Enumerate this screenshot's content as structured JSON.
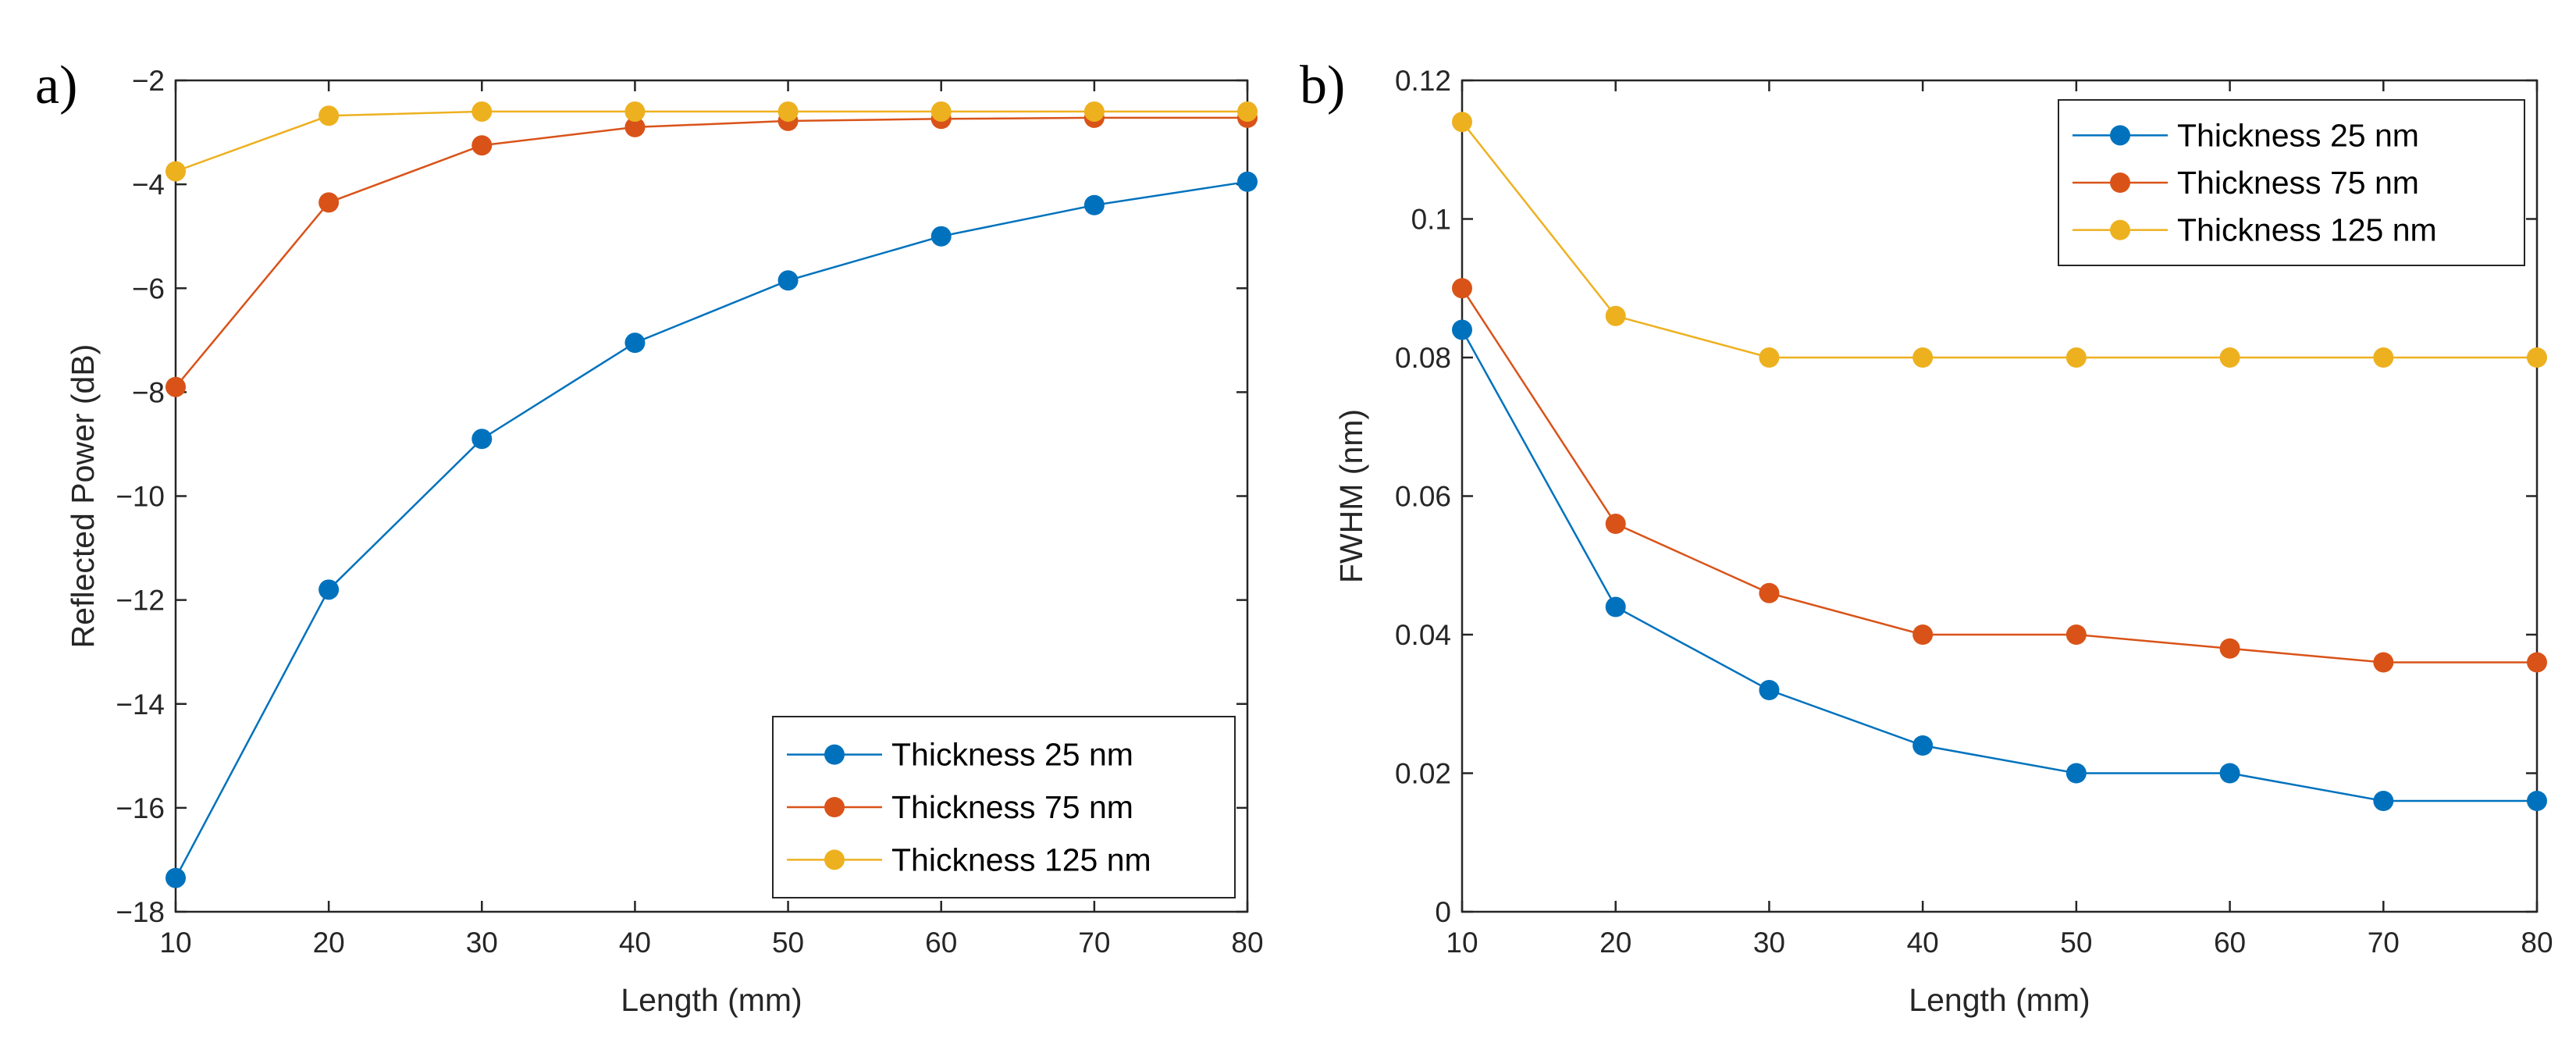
{
  "chart_data": [
    {
      "type": "line",
      "panel_label": "a)",
      "title": "",
      "xlabel": "Length (mm)",
      "ylabel": "Reflected Power (dB)",
      "xlim": [
        10,
        80
      ],
      "ylim": [
        -18,
        -2
      ],
      "xticks": [
        10,
        20,
        30,
        40,
        50,
        60,
        70,
        80
      ],
      "yticks": [
        -18,
        -16,
        -14,
        -12,
        -10,
        -8,
        -6,
        -4,
        -2
      ],
      "grid": false,
      "legend_location": "bottom-right",
      "x": [
        10,
        20,
        30,
        40,
        50,
        60,
        70,
        80
      ],
      "series": [
        {
          "name": "Thickness 25 nm",
          "color": "#0072BD",
          "values": [
            -17.35,
            -11.8,
            -8.9,
            -7.05,
            -5.85,
            -5.0,
            -4.4,
            -3.95
          ]
        },
        {
          "name": "Thickness 75 nm",
          "color": "#D95319",
          "values": [
            -7.9,
            -4.35,
            -3.25,
            -2.9,
            -2.78,
            -2.74,
            -2.72,
            -2.72
          ]
        },
        {
          "name": "Thickness 125 nm",
          "color": "#EDB120",
          "values": [
            -3.75,
            -2.68,
            -2.6,
            -2.6,
            -2.6,
            -2.6,
            -2.6,
            -2.6
          ]
        }
      ]
    },
    {
      "type": "line",
      "panel_label": "b)",
      "title": "",
      "xlabel": "Length (mm)",
      "ylabel": "FWHM (nm)",
      "xlim": [
        10,
        80
      ],
      "ylim": [
        0,
        0.12
      ],
      "xticks": [
        10,
        20,
        30,
        40,
        50,
        60,
        70,
        80
      ],
      "yticks": [
        0,
        0.02,
        0.04,
        0.06,
        0.08,
        0.1,
        0.12
      ],
      "ytick_labels": [
        "0",
        "0.02",
        "0.04",
        "0.06",
        "0.08",
        "0.1",
        "0.12"
      ],
      "grid": false,
      "legend_location": "top-right",
      "x": [
        10,
        20,
        30,
        40,
        50,
        60,
        70,
        80
      ],
      "series": [
        {
          "name": "Thickness 25 nm",
          "color": "#0072BD",
          "values": [
            0.084,
            0.044,
            0.032,
            0.024,
            0.02,
            0.02,
            0.016,
            0.016
          ]
        },
        {
          "name": "Thickness 75 nm",
          "color": "#D95319",
          "values": [
            0.09,
            0.056,
            0.046,
            0.04,
            0.04,
            0.038,
            0.036,
            0.036
          ]
        },
        {
          "name": "Thickness 125 nm",
          "color": "#EDB120",
          "values": [
            0.114,
            0.086,
            0.08,
            0.08,
            0.08,
            0.08,
            0.08,
            0.08
          ]
        }
      ]
    }
  ]
}
